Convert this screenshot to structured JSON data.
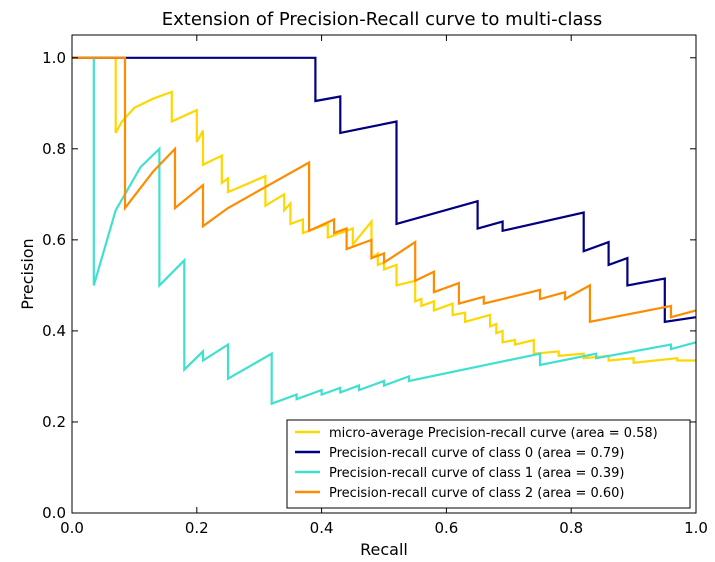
{
  "chart_data": {
    "type": "line",
    "title": "Extension of Precision-Recall curve to multi-class",
    "xlabel": "Recall",
    "ylabel": "Precision",
    "xlim": [
      0.0,
      1.0
    ],
    "ylim": [
      0.0,
      1.05
    ],
    "xticks": [
      "0.0",
      "0.2",
      "0.4",
      "0.6",
      "0.8",
      "1.0"
    ],
    "yticks": [
      "0.0",
      "0.2",
      "0.4",
      "0.6",
      "0.8",
      "1.0"
    ],
    "grid": false,
    "legend_position": "lower-right",
    "series": [
      {
        "name": "micro-average Precision-recall curve (area = 0.58)",
        "color": "#ffd700",
        "points": [
          [
            0.0,
            1.0
          ],
          [
            0.07,
            1.0
          ],
          [
            0.07,
            0.835
          ],
          [
            0.08,
            0.86
          ],
          [
            0.1,
            0.89
          ],
          [
            0.13,
            0.91
          ],
          [
            0.16,
            0.925
          ],
          [
            0.16,
            0.86
          ],
          [
            0.2,
            0.885
          ],
          [
            0.2,
            0.815
          ],
          [
            0.21,
            0.84
          ],
          [
            0.21,
            0.765
          ],
          [
            0.24,
            0.785
          ],
          [
            0.24,
            0.725
          ],
          [
            0.25,
            0.735
          ],
          [
            0.25,
            0.705
          ],
          [
            0.31,
            0.74
          ],
          [
            0.31,
            0.675
          ],
          [
            0.34,
            0.7
          ],
          [
            0.34,
            0.665
          ],
          [
            0.35,
            0.68
          ],
          [
            0.35,
            0.635
          ],
          [
            0.37,
            0.645
          ],
          [
            0.37,
            0.615
          ],
          [
            0.41,
            0.635
          ],
          [
            0.41,
            0.605
          ],
          [
            0.45,
            0.625
          ],
          [
            0.45,
            0.59
          ],
          [
            0.48,
            0.64
          ],
          [
            0.48,
            0.56
          ],
          [
            0.49,
            0.57
          ],
          [
            0.49,
            0.545
          ],
          [
            0.5,
            0.55
          ],
          [
            0.5,
            0.535
          ],
          [
            0.52,
            0.545
          ],
          [
            0.52,
            0.5
          ],
          [
            0.55,
            0.51
          ],
          [
            0.55,
            0.465
          ],
          [
            0.56,
            0.47
          ],
          [
            0.56,
            0.455
          ],
          [
            0.58,
            0.465
          ],
          [
            0.58,
            0.445
          ],
          [
            0.61,
            0.46
          ],
          [
            0.61,
            0.435
          ],
          [
            0.63,
            0.44
          ],
          [
            0.63,
            0.42
          ],
          [
            0.67,
            0.435
          ],
          [
            0.67,
            0.41
          ],
          [
            0.68,
            0.415
          ],
          [
            0.68,
            0.395
          ],
          [
            0.69,
            0.4
          ],
          [
            0.69,
            0.375
          ],
          [
            0.71,
            0.38
          ],
          [
            0.71,
            0.37
          ],
          [
            0.74,
            0.38
          ],
          [
            0.74,
            0.35
          ],
          [
            0.78,
            0.355
          ],
          [
            0.78,
            0.345
          ],
          [
            0.82,
            0.35
          ],
          [
            0.82,
            0.34
          ],
          [
            0.86,
            0.345
          ],
          [
            0.86,
            0.335
          ],
          [
            0.9,
            0.34
          ],
          [
            0.9,
            0.33
          ],
          [
            0.97,
            0.34
          ],
          [
            0.97,
            0.335
          ],
          [
            1.0,
            0.335
          ]
        ]
      },
      {
        "name": "Precision-recall curve of class 0 (area = 0.79)",
        "color": "#000080",
        "points": [
          [
            0.0,
            1.0
          ],
          [
            0.39,
            1.0
          ],
          [
            0.39,
            0.905
          ],
          [
            0.43,
            0.915
          ],
          [
            0.43,
            0.835
          ],
          [
            0.52,
            0.86
          ],
          [
            0.52,
            0.635
          ],
          [
            0.65,
            0.685
          ],
          [
            0.65,
            0.625
          ],
          [
            0.69,
            0.64
          ],
          [
            0.69,
            0.62
          ],
          [
            0.82,
            0.66
          ],
          [
            0.82,
            0.575
          ],
          [
            0.86,
            0.595
          ],
          [
            0.86,
            0.545
          ],
          [
            0.89,
            0.56
          ],
          [
            0.89,
            0.5
          ],
          [
            0.95,
            0.515
          ],
          [
            0.95,
            0.42
          ],
          [
            1.0,
            0.43
          ]
        ]
      },
      {
        "name": "Precision-recall curve of class 1 (area = 0.39)",
        "color": "#40e0d0",
        "points": [
          [
            0.035,
            1.0
          ],
          [
            0.035,
            0.5
          ],
          [
            0.07,
            0.665
          ],
          [
            0.11,
            0.76
          ],
          [
            0.14,
            0.8
          ],
          [
            0.14,
            0.5
          ],
          [
            0.18,
            0.555
          ],
          [
            0.18,
            0.315
          ],
          [
            0.21,
            0.355
          ],
          [
            0.21,
            0.335
          ],
          [
            0.25,
            0.37
          ],
          [
            0.25,
            0.295
          ],
          [
            0.32,
            0.35
          ],
          [
            0.32,
            0.24
          ],
          [
            0.36,
            0.26
          ],
          [
            0.36,
            0.25
          ],
          [
            0.4,
            0.27
          ],
          [
            0.4,
            0.26
          ],
          [
            0.43,
            0.275
          ],
          [
            0.43,
            0.265
          ],
          [
            0.46,
            0.28
          ],
          [
            0.46,
            0.27
          ],
          [
            0.5,
            0.29
          ],
          [
            0.5,
            0.28
          ],
          [
            0.54,
            0.3
          ],
          [
            0.54,
            0.29
          ],
          [
            0.75,
            0.35
          ],
          [
            0.75,
            0.325
          ],
          [
            0.84,
            0.35
          ],
          [
            0.84,
            0.34
          ],
          [
            0.96,
            0.37
          ],
          [
            0.96,
            0.36
          ],
          [
            1.0,
            0.375
          ]
        ]
      },
      {
        "name": "Precision-recall curve of class 2 (area = 0.60)",
        "color": "#ff8c00",
        "points": [
          [
            0.0,
            1.0
          ],
          [
            0.085,
            1.0
          ],
          [
            0.085,
            0.67
          ],
          [
            0.13,
            0.75
          ],
          [
            0.165,
            0.8
          ],
          [
            0.165,
            0.67
          ],
          [
            0.21,
            0.72
          ],
          [
            0.21,
            0.63
          ],
          [
            0.25,
            0.67
          ],
          [
            0.38,
            0.77
          ],
          [
            0.38,
            0.62
          ],
          [
            0.42,
            0.645
          ],
          [
            0.42,
            0.615
          ],
          [
            0.44,
            0.625
          ],
          [
            0.44,
            0.58
          ],
          [
            0.48,
            0.6
          ],
          [
            0.48,
            0.56
          ],
          [
            0.5,
            0.57
          ],
          [
            0.5,
            0.55
          ],
          [
            0.55,
            0.595
          ],
          [
            0.55,
            0.51
          ],
          [
            0.58,
            0.53
          ],
          [
            0.58,
            0.485
          ],
          [
            0.62,
            0.505
          ],
          [
            0.62,
            0.46
          ],
          [
            0.66,
            0.475
          ],
          [
            0.66,
            0.46
          ],
          [
            0.75,
            0.49
          ],
          [
            0.75,
            0.47
          ],
          [
            0.79,
            0.485
          ],
          [
            0.79,
            0.47
          ],
          [
            0.83,
            0.5
          ],
          [
            0.83,
            0.42
          ],
          [
            0.96,
            0.455
          ],
          [
            0.96,
            0.43
          ],
          [
            1.0,
            0.445
          ]
        ]
      }
    ]
  }
}
